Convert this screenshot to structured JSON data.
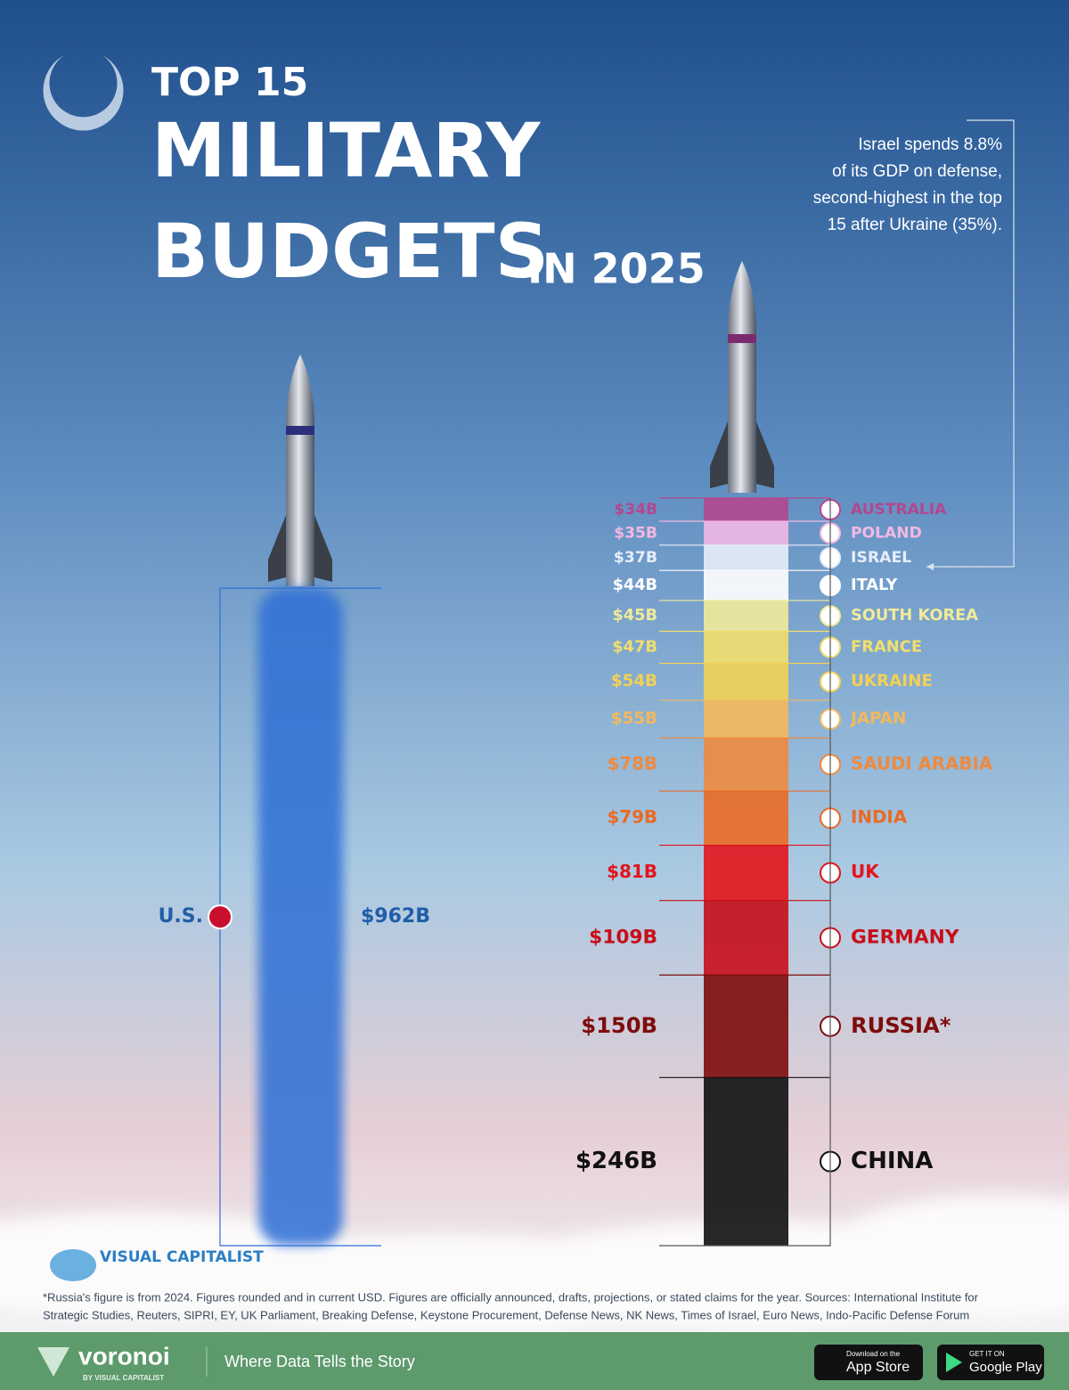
{
  "chart_data": {
    "type": "bar",
    "title": {
      "line1": "TOP 15",
      "line2": "MILITARY",
      "line3": "BUDGETS",
      "line4": "IN 2025"
    },
    "annotation": [
      "Israel spends 8.8%",
      "of its GDP on defense,",
      "second-highest in the top",
      "15 after Ukraine (35%)."
    ],
    "leader": {
      "name": "U.S.",
      "values": [
        962
      ],
      "value_labels": [
        "$962B"
      ],
      "color": "#2f6fd6",
      "label_color": "#1f5ea8"
    },
    "stack": {
      "categories": [
        "AUSTRALIA",
        "POLAND",
        "ISRAEL",
        "ITALY",
        "SOUTH KOREA",
        "FRANCE",
        "UKRAINE",
        "JAPAN",
        "SAUDI ARABIA",
        "INDIA",
        "UK",
        "GERMANY",
        "RUSSIA*",
        "CHINA"
      ],
      "values": [
        34,
        35,
        37,
        44,
        45,
        47,
        54,
        55,
        78,
        79,
        81,
        109,
        150,
        246
      ],
      "value_labels": [
        "$34B",
        "$35B",
        "$37B",
        "$44B",
        "$45B",
        "$47B",
        "$54B",
        "$55B",
        "$78B",
        "$79B",
        "$81B",
        "$109B",
        "$150B",
        "$246B"
      ],
      "colors": [
        "#b2478f",
        "#f2b8e2",
        "#e6eef8",
        "#ffffff",
        "#f0eb9a",
        "#f1df6c",
        "#f3d054",
        "#f3b95c",
        "#ee8a3e",
        "#ea6a24",
        "#e3141c",
        "#c70e1a",
        "#7e0c0c",
        "#111111"
      ]
    },
    "footnote": [
      "*Russia's figure is from 2024. Figures rounded and in current USD. Figures are officially announced, drafts, projections, or stated claims for the year. Sources: International Institute for",
      "Strategic Studies, Reuters, SIPRI, EY, UK Parliament, Breaking Defense, Keystone Procurement, Defense News, NK News, Times of Israel, Euro News, Indo-Pacific Defense Forum"
    ]
  },
  "branding": {
    "logo": "VISUAL CAPITALIST",
    "footer_brand": "voronoi",
    "footer_by": "BY VISUAL CAPITALIST",
    "tagline": "Where Data Tells the Story",
    "app_store_small": "Download on the",
    "app_store": "App Store",
    "google_small": "GET IT ON",
    "google": "Google Play"
  }
}
